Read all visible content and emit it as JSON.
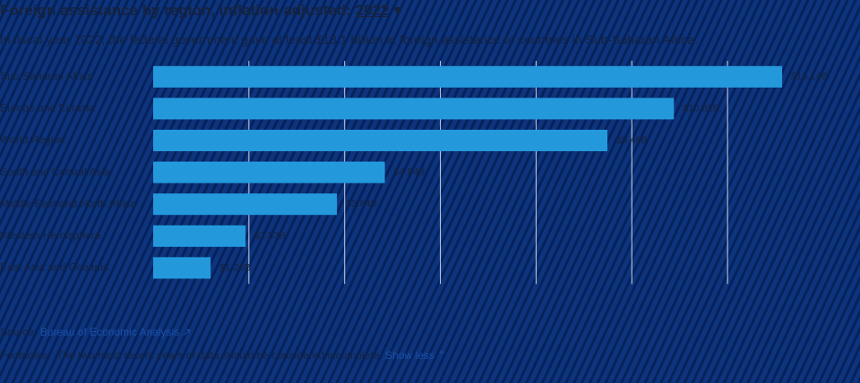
{
  "chart_data": {
    "type": "bar",
    "orientation": "horizontal",
    "title": "Foreign assistance by region, inflation-adjusted:",
    "title_year": "2022",
    "subtitle": "In fiscal year 2022, the federal government gave at least $13.1 billion in foreign assistance to countries in Sub-Saharan Africa.",
    "categories": [
      "Sub-Saharan Africa",
      "Europe and Eurasia",
      "World Region",
      "South and Central Asia",
      "Middle East and North Africa",
      "Western Hemisphere",
      "East Asia and Oceania"
    ],
    "values": [
      13.14,
      10.88,
      9.49,
      4.84,
      3.84,
      1.93,
      1.2
    ],
    "value_labels": [
      "$13.14B",
      "$10.88B",
      "$9.49B",
      "$4.84B",
      "$3.84B",
      "$1.93B",
      "$1.20B"
    ],
    "color": "#2399dc",
    "xlim": [
      0,
      14
    ],
    "xticks": [
      2,
      4,
      6,
      8,
      10,
      12
    ],
    "grid": true,
    "source_label": "Source:",
    "source": "Bureau of Economic Analysis",
    "footnotes_label": "Footnotes:",
    "footnote": "The two most recent years of data should be considered incomplete.",
    "footnote_toggle": "Show less"
  }
}
